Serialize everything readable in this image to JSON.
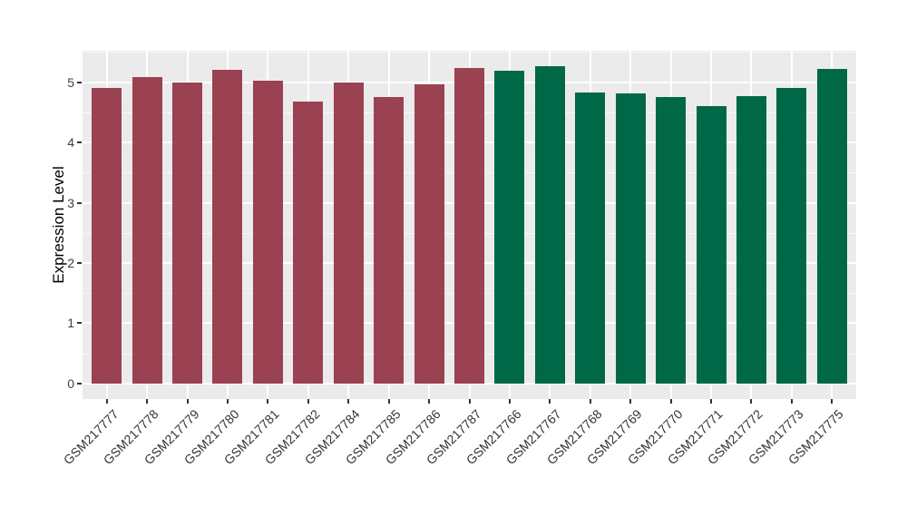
{
  "chart_data": {
    "type": "bar",
    "title": "",
    "xlabel": "",
    "ylabel": "Expression Level",
    "legend": "none",
    "categories": [
      "GSM217777",
      "GSM217778",
      "GSM217779",
      "GSM217780",
      "GSM217781",
      "GSM217782",
      "GSM217784",
      "GSM217785",
      "GSM217786",
      "GSM217787",
      "GSM217766",
      "GSM217767",
      "GSM217768",
      "GSM217769",
      "GSM217770",
      "GSM217771",
      "GSM217772",
      "GSM217773",
      "GSM217775"
    ],
    "values": [
      4.91,
      5.08,
      5.0,
      5.21,
      5.03,
      4.68,
      4.99,
      4.75,
      4.97,
      5.23,
      5.19,
      5.26,
      4.83,
      4.82,
      4.76,
      4.6,
      4.77,
      4.9,
      5.22
    ],
    "colors": [
      "#9A4152",
      "#9A4152",
      "#9A4152",
      "#9A4152",
      "#9A4152",
      "#9A4152",
      "#9A4152",
      "#9A4152",
      "#9A4152",
      "#9A4152",
      "#006847",
      "#006847",
      "#006847",
      "#006847",
      "#006847",
      "#006847",
      "#006847",
      "#006847",
      "#006847"
    ],
    "yticks": [
      0,
      1,
      2,
      3,
      4,
      5
    ],
    "minor_yticks": [
      0.5,
      1.5,
      2.5,
      3.5,
      4.5,
      5.5
    ],
    "ylim": [
      0,
      5.5
    ],
    "grid": {
      "major": true,
      "minor": true,
      "vertical_major": true
    },
    "panel_background": "#EBEBEB",
    "grid_color": "#FFFFFF",
    "axis_text_color": "#404040",
    "axis_title_color": "#000000",
    "x_label_rotation_deg": 45
  }
}
